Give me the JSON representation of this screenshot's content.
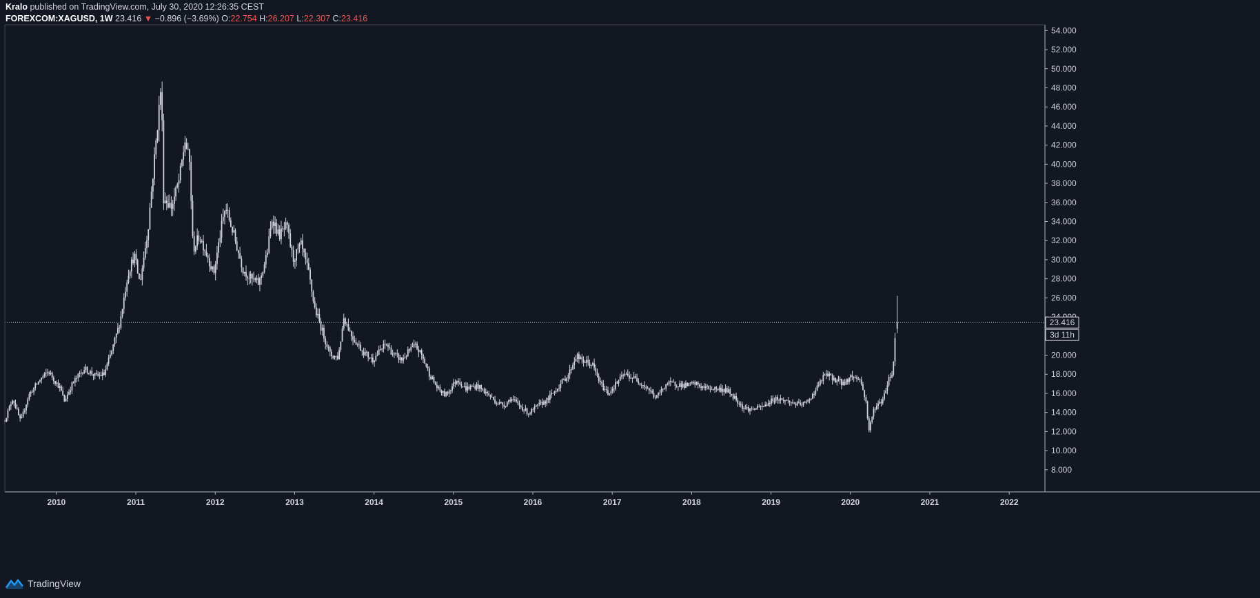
{
  "header": {
    "author": "Kralo",
    "published": "published on TradingView.com, July 30, 2020 12:26:35 CEST",
    "symbol": "FOREXCOM:XAGUSD, 1W",
    "last": "23.416",
    "change": "−0.896 (−3.69%)",
    "o_label": "O:",
    "o_value": "22.754",
    "h_label": "H:",
    "h_value": "26.207",
    "l_label": "L:",
    "l_value": "22.307",
    "c_label": "C:",
    "c_value": "23.416"
  },
  "footer": {
    "brand": "TradingView"
  },
  "colors": {
    "background": "#131722",
    "candle": "#d1d4dc",
    "text": "#d1d4dc",
    "down": "#ef5350"
  },
  "chart_data": {
    "type": "line",
    "symbol": "FOREXCOM:XAGUSD",
    "interval": "1W",
    "xlim": [
      2009.35,
      2022.45
    ],
    "ylim": [
      7.7,
      54.6
    ],
    "y_ticks": [
      "8.000",
      "10.000",
      "12.000",
      "14.000",
      "16.000",
      "18.000",
      "20.000",
      "22.000",
      "24.000",
      "26.000",
      "28.000",
      "30.000",
      "32.000",
      "34.000",
      "36.000",
      "38.000",
      "40.000",
      "42.000",
      "44.000",
      "46.000",
      "48.000",
      "50.000",
      "52.000",
      "54.000"
    ],
    "x_ticks": [
      "2010",
      "2011",
      "2012",
      "2013",
      "2014",
      "2015",
      "2016",
      "2017",
      "2018",
      "2019",
      "2020",
      "2021",
      "2022"
    ],
    "last_price": 23.416,
    "last_price_label": "23.416",
    "countdown_label": "3d 11h",
    "price_path": [
      [
        2009.35,
        13.2
      ],
      [
        2009.45,
        15.5
      ],
      [
        2009.55,
        13.0
      ],
      [
        2009.65,
        15.8
      ],
      [
        2009.8,
        17.5
      ],
      [
        2009.9,
        18.3
      ],
      [
        2010.05,
        16.5
      ],
      [
        2010.1,
        15.2
      ],
      [
        2010.2,
        17.0
      ],
      [
        2010.35,
        18.6
      ],
      [
        2010.5,
        17.8
      ],
      [
        2010.6,
        18.0
      ],
      [
        2010.7,
        20.5
      ],
      [
        2010.8,
        23.5
      ],
      [
        2010.9,
        28.5
      ],
      [
        2010.98,
        30.5
      ],
      [
        2011.05,
        27.5
      ],
      [
        2011.15,
        33.0
      ],
      [
        2011.25,
        42.0
      ],
      [
        2011.32,
        48.5
      ],
      [
        2011.35,
        36.5
      ],
      [
        2011.45,
        35.5
      ],
      [
        2011.55,
        38.5
      ],
      [
        2011.62,
        42.5
      ],
      [
        2011.68,
        40.0
      ],
      [
        2011.72,
        31.0
      ],
      [
        2011.8,
        32.5
      ],
      [
        2011.9,
        30.5
      ],
      [
        2011.98,
        28.5
      ],
      [
        2012.08,
        33.5
      ],
      [
        2012.13,
        35.5
      ],
      [
        2012.22,
        33.0
      ],
      [
        2012.35,
        29.0
      ],
      [
        2012.45,
        28.0
      ],
      [
        2012.55,
        27.5
      ],
      [
        2012.65,
        30.5
      ],
      [
        2012.72,
        34.5
      ],
      [
        2012.8,
        32.5
      ],
      [
        2012.9,
        33.5
      ],
      [
        2012.98,
        30.0
      ],
      [
        2013.08,
        31.5
      ],
      [
        2013.18,
        28.5
      ],
      [
        2013.25,
        25.0
      ],
      [
        2013.35,
        22.5
      ],
      [
        2013.45,
        20.0
      ],
      [
        2013.55,
        19.8
      ],
      [
        2013.62,
        24.0
      ],
      [
        2013.72,
        22.0
      ],
      [
        2013.85,
        20.5
      ],
      [
        2013.98,
        19.5
      ],
      [
        2014.08,
        20.5
      ],
      [
        2014.15,
        21.2
      ],
      [
        2014.25,
        20.0
      ],
      [
        2014.35,
        19.5
      ],
      [
        2014.45,
        20.5
      ],
      [
        2014.52,
        21.0
      ],
      [
        2014.6,
        20.0
      ],
      [
        2014.7,
        18.0
      ],
      [
        2014.8,
        16.5
      ],
      [
        2014.9,
        15.8
      ],
      [
        2015.05,
        17.5
      ],
      [
        2015.15,
        16.5
      ],
      [
        2015.3,
        16.8
      ],
      [
        2015.45,
        15.8
      ],
      [
        2015.55,
        15.0
      ],
      [
        2015.65,
        14.8
      ],
      [
        2015.72,
        15.5
      ],
      [
        2015.82,
        14.8
      ],
      [
        2015.95,
        13.9
      ],
      [
        2016.08,
        14.8
      ],
      [
        2016.18,
        15.3
      ],
      [
        2016.3,
        16.5
      ],
      [
        2016.45,
        18.0
      ],
      [
        2016.55,
        20.0
      ],
      [
        2016.6,
        19.5
      ],
      [
        2016.75,
        19.0
      ],
      [
        2016.85,
        17.0
      ],
      [
        2016.95,
        16.0
      ],
      [
        2017.05,
        17.0
      ],
      [
        2017.15,
        18.0
      ],
      [
        2017.3,
        17.5
      ],
      [
        2017.45,
        16.5
      ],
      [
        2017.55,
        15.5
      ],
      [
        2017.68,
        17.0
      ],
      [
        2017.8,
        17.0
      ],
      [
        2017.92,
        16.8
      ],
      [
        2018.05,
        17.0
      ],
      [
        2018.15,
        16.6
      ],
      [
        2018.3,
        16.5
      ],
      [
        2018.45,
        16.3
      ],
      [
        2018.55,
        15.5
      ],
      [
        2018.65,
        14.5
      ],
      [
        2018.75,
        14.3
      ],
      [
        2018.9,
        14.6
      ],
      [
        2019.05,
        15.5
      ],
      [
        2019.2,
        15.2
      ],
      [
        2019.35,
        14.8
      ],
      [
        2019.45,
        15.0
      ],
      [
        2019.55,
        16.2
      ],
      [
        2019.68,
        18.0
      ],
      [
        2019.8,
        17.5
      ],
      [
        2019.92,
        17.0
      ],
      [
        2020.0,
        17.8
      ],
      [
        2020.12,
        17.5
      ],
      [
        2020.2,
        15.0
      ],
      [
        2020.23,
        12.0
      ],
      [
        2020.3,
        14.5
      ],
      [
        2020.4,
        15.2
      ],
      [
        2020.48,
        17.5
      ],
      [
        2020.53,
        18.2
      ],
      [
        2020.55,
        20.0
      ],
      [
        2020.57,
        23.4
      ]
    ]
  }
}
